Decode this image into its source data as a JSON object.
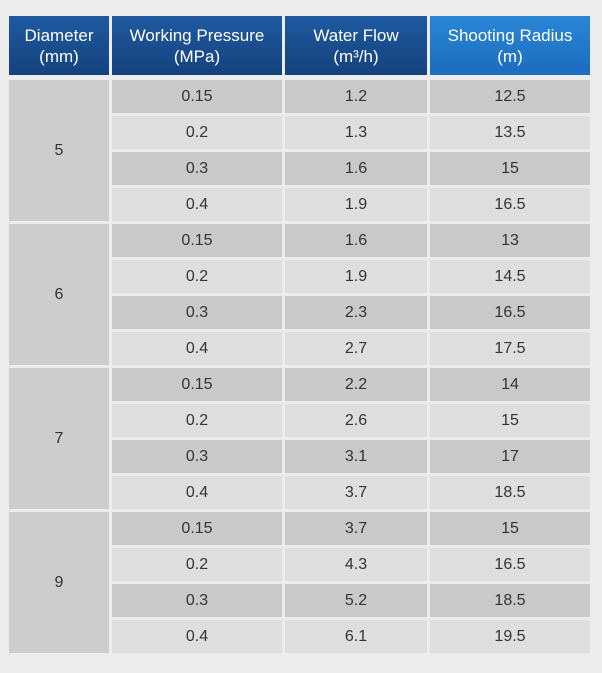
{
  "headers": {
    "diameter": [
      "Diameter",
      "(mm)"
    ],
    "pressure": [
      "Working Pressure",
      "(MPa)"
    ],
    "flow": [
      "Water Flow",
      "(m³/h)"
    ],
    "radius": [
      "Shooting Radius",
      "(m)"
    ]
  },
  "groups": [
    {
      "diameter": "5",
      "rows": [
        {
          "pressure": "0.15",
          "flow": "1.2",
          "radius": "12.5"
        },
        {
          "pressure": "0.2",
          "flow": "1.3",
          "radius": "13.5"
        },
        {
          "pressure": "0.3",
          "flow": "1.6",
          "radius": "15"
        },
        {
          "pressure": "0.4",
          "flow": "1.9",
          "radius": "16.5"
        }
      ]
    },
    {
      "diameter": "6",
      "rows": [
        {
          "pressure": "0.15",
          "flow": "1.6",
          "radius": "13"
        },
        {
          "pressure": "0.2",
          "flow": "1.9",
          "radius": "14.5"
        },
        {
          "pressure": "0.3",
          "flow": "2.3",
          "radius": "16.5"
        },
        {
          "pressure": "0.4",
          "flow": "2.7",
          "radius": "17.5"
        }
      ]
    },
    {
      "diameter": "7",
      "rows": [
        {
          "pressure": "0.15",
          "flow": "2.2",
          "radius": "14"
        },
        {
          "pressure": "0.2",
          "flow": "2.6",
          "radius": "15"
        },
        {
          "pressure": "0.3",
          "flow": "3.1",
          "radius": "17"
        },
        {
          "pressure": "0.4",
          "flow": "3.7",
          "radius": "18.5"
        }
      ]
    },
    {
      "diameter": "9",
      "rows": [
        {
          "pressure": "0.15",
          "flow": "3.7",
          "radius": "15"
        },
        {
          "pressure": "0.2",
          "flow": "4.3",
          "radius": "16.5"
        },
        {
          "pressure": "0.3",
          "flow": "5.2",
          "radius": "18.5"
        },
        {
          "pressure": "0.4",
          "flow": "6.1",
          "radius": "19.5"
        }
      ]
    }
  ]
}
